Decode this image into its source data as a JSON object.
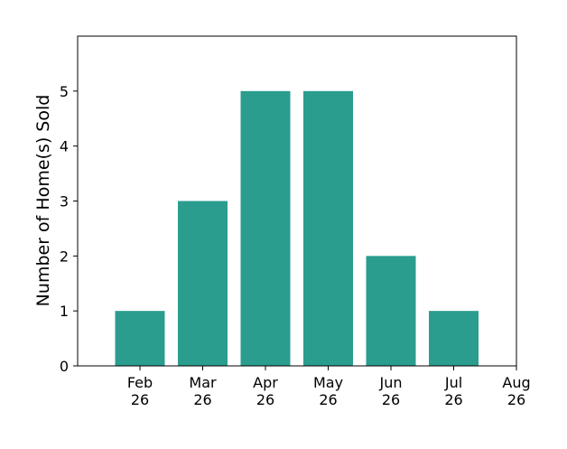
{
  "chart_data": {
    "type": "bar",
    "title": "",
    "xlabel": "",
    "ylabel": "Number of Home(s) Sold",
    "categories": [
      "Feb\n26",
      "Mar\n26",
      "Apr\n26",
      "May\n26",
      "Jun\n26",
      "Jul\n26"
    ],
    "values": [
      1,
      3,
      5,
      5,
      2,
      1
    ],
    "x_tick_labels": [
      "Feb\n26",
      "Mar\n26",
      "Apr\n26",
      "May\n26",
      "Jun\n26",
      "Jul\n26",
      "Aug\n26"
    ],
    "y_ticks": [
      0,
      1,
      2,
      3,
      4,
      5
    ],
    "ylim": [
      0,
      6
    ],
    "grid": false,
    "legend": "none",
    "bar_color": "#2a9d8f",
    "axes_color": "#000000"
  }
}
